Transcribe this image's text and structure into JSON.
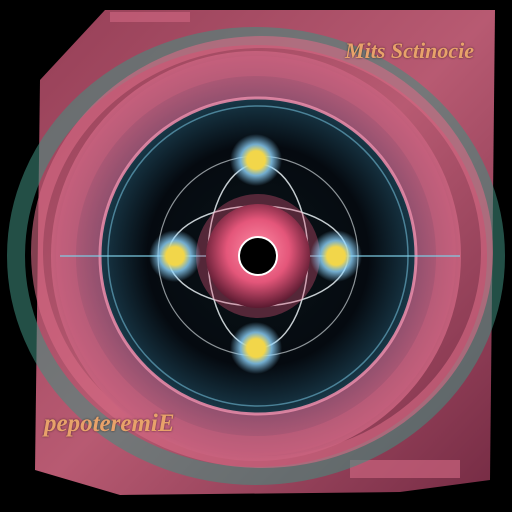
{
  "captions": {
    "title": "Mits Sctinocie",
    "bottom": "pepoteremiE"
  },
  "colors": {
    "background": "#000000",
    "outer_ring_green": "#3f8f7f",
    "outer_ring_pink": "#d86a86",
    "nucleus_pink": "#e4567a",
    "electron_glow": "#8fd6ff",
    "electron_core": "#f2d64a",
    "caption_text": "#e8a26a"
  },
  "icons": {
    "nucleus": "atom-nucleus-icon",
    "electron": "electron-glow-icon"
  }
}
